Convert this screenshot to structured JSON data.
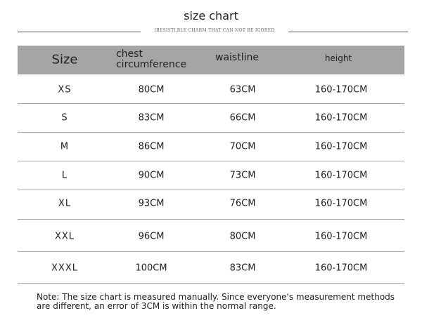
{
  "title": "size chart",
  "tagline": "IRESISTLBLE CHARM THAT CAN NOT BE IGORED",
  "headers": {
    "size": "Size",
    "chest_1": "chest",
    "chest_2": "circumference",
    "waist": "waistline",
    "height": "height"
  },
  "rows": [
    {
      "size": "XS",
      "chest": "80CM",
      "waist": "63CM",
      "height": "160-170CM"
    },
    {
      "size": "S",
      "chest": "83CM",
      "waist": "66CM",
      "height": "160-170CM"
    },
    {
      "size": "M",
      "chest": "86CM",
      "waist": "70CM",
      "height": "160-170CM"
    },
    {
      "size": "L",
      "chest": "90CM",
      "waist": "73CM",
      "height": "160-170CM"
    },
    {
      "size": "XL",
      "chest": "93CM",
      "waist": "76CM",
      "height": "160-170CM"
    },
    {
      "size": "XXL",
      "chest": "96CM",
      "waist": "80CM",
      "height": "160-170CM"
    },
    {
      "size": "XXXL",
      "chest": "100CM",
      "waist": "83CM",
      "height": "160-170CM"
    }
  ],
  "note": "Note: The size chart is measured manually. Since everyone's measurement methods are different, an error of 3CM is within the normal range.",
  "colors": {
    "header_bg": "#a5a5a5"
  }
}
